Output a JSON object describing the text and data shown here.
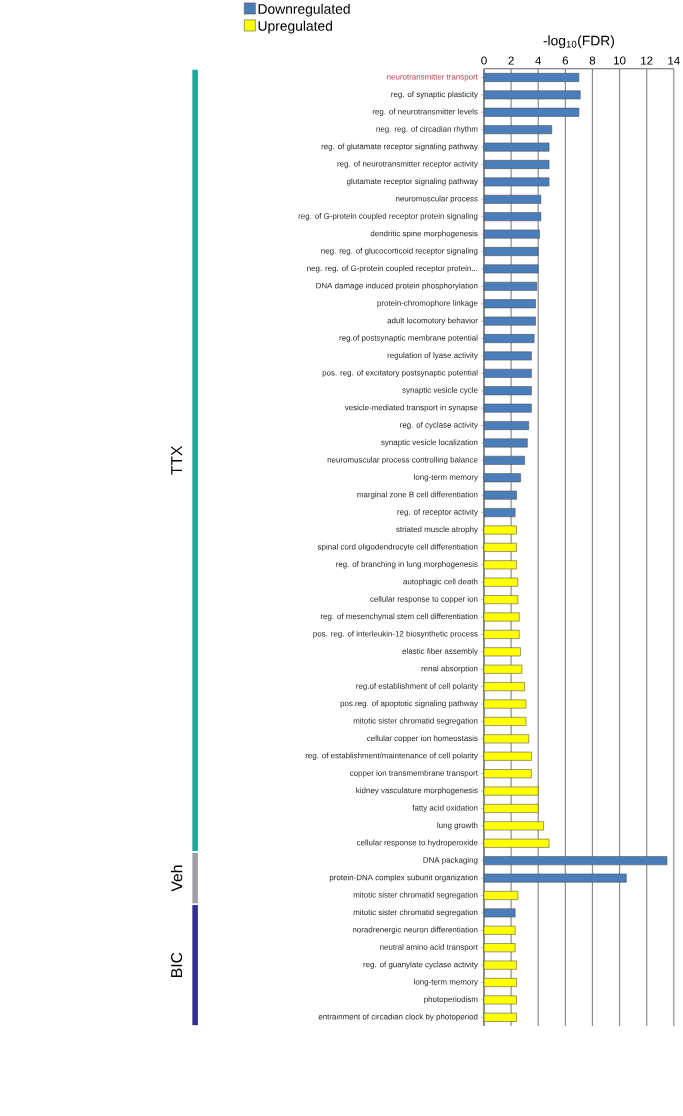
{
  "chart_data": {
    "type": "bar",
    "orientation": "horizontal",
    "xlabel": "-log$_{10}$(FDR)",
    "categories": [
      "neurotransmitter transport",
      "reg. of synaptic plasticity",
      "reg. of neurotransmitter levels",
      "neg. reg. of circadian rhythm",
      "reg. of glutamate receptor signaling pathway",
      "reg. of neurotransmitter receptor activity",
      "glutamate receptor signaling pathway",
      "neuromuscular process",
      "reg. of G-protein coupled receptor protein signaling",
      "dendritic spine morphogenesis",
      "neg. reg. of glucocorticoid receptor signaling",
      "neg. reg. of G-protein coupled receptor protein...",
      "DNA damage induced protein phosphorylation",
      "protein-chromophore linkage",
      "adult locomotory behavior",
      "reg.of postsynaptic membrane potential",
      "regulation of lyase activity",
      "pos. reg. of excitatory postsynaptic potential",
      "synaptic vesicle cycle",
      "vesicle-mediated transport in synapse",
      "reg. of cyclase activity",
      "synaptic vesicle localization",
      "neuromuscular process controlling balance",
      "long-term memory",
      "marginal zone B cell differentiation",
      "reg. of receptor activity",
      "striated muscle atrophy",
      "spinal cord oligodendrocyte cell differentiation",
      "reg. of branching in lung morphogenesis",
      "autophagic cell death",
      "cellular response to copper ion",
      "reg. of mesenchymal stem cell differentiation",
      "pos. reg. of interleukin-12 biosynthetic process",
      "elastic fiber assembly",
      "renal absorption",
      "reg.of establishment of cell polarity",
      "pos.reg. of apoptotic signaling pathway",
      "mitotic sister chromatid segregation",
      "cellular copper ion homeostasis",
      "reg. of establishment/maintenance of cell polarity",
      "copper ion transmembrane transport",
      "kidney vasculature morphogenesis",
      "fatty acid oxidation",
      "lung growth",
      "cellular response to hydroperoxide",
      "DNA packaging",
      "protein-DNA complex subunit organization",
      "mitotic sister chromatid segregation",
      "mitotic sister chromatid segregation",
      "noradrenergic neuron differentiation",
      "neutral amino acid transport",
      "reg. of guanylate cyclase activity",
      "long-term memory",
      "photoperiodism",
      "entrainment of circadian clock by photoperiod"
    ],
    "series": [
      {
        "name": "Downregulated",
        "color": "#4a7ebb",
        "values": [
          7.0,
          7.1,
          7.0,
          5.0,
          4.8,
          4.8,
          4.8,
          4.2,
          4.2,
          4.1,
          4.0,
          4.0,
          3.9,
          3.8,
          3.8,
          3.7,
          3.5,
          3.5,
          3.5,
          3.5,
          3.3,
          3.2,
          3.0,
          2.7,
          2.4,
          2.3,
          null,
          null,
          null,
          null,
          null,
          null,
          null,
          null,
          null,
          null,
          null,
          null,
          null,
          null,
          null,
          null,
          null,
          null,
          null,
          13.5,
          10.5,
          null,
          2.3,
          null,
          null,
          null,
          null,
          null,
          null
        ]
      },
      {
        "name": "Upregulated",
        "color": "#ffff00",
        "values": [
          null,
          null,
          null,
          null,
          null,
          null,
          null,
          null,
          null,
          null,
          null,
          null,
          null,
          null,
          null,
          null,
          null,
          null,
          null,
          null,
          null,
          null,
          null,
          null,
          null,
          null,
          2.4,
          2.4,
          2.4,
          2.5,
          2.5,
          2.6,
          2.6,
          2.7,
          2.8,
          3.0,
          3.1,
          3.1,
          3.3,
          3.5,
          3.5,
          4.0,
          4.0,
          4.4,
          4.8,
          null,
          null,
          2.5,
          null,
          2.3,
          2.3,
          2.4,
          2.4,
          2.4,
          2.4
        ]
      }
    ],
    "xlim": [
      0,
      14
    ],
    "xticks": [
      0,
      2,
      4,
      6,
      8,
      10,
      12,
      14
    ],
    "grid": "x",
    "legend": "top left",
    "annotations": [
      "TTX",
      "Veh",
      "BIC"
    ]
  }
}
